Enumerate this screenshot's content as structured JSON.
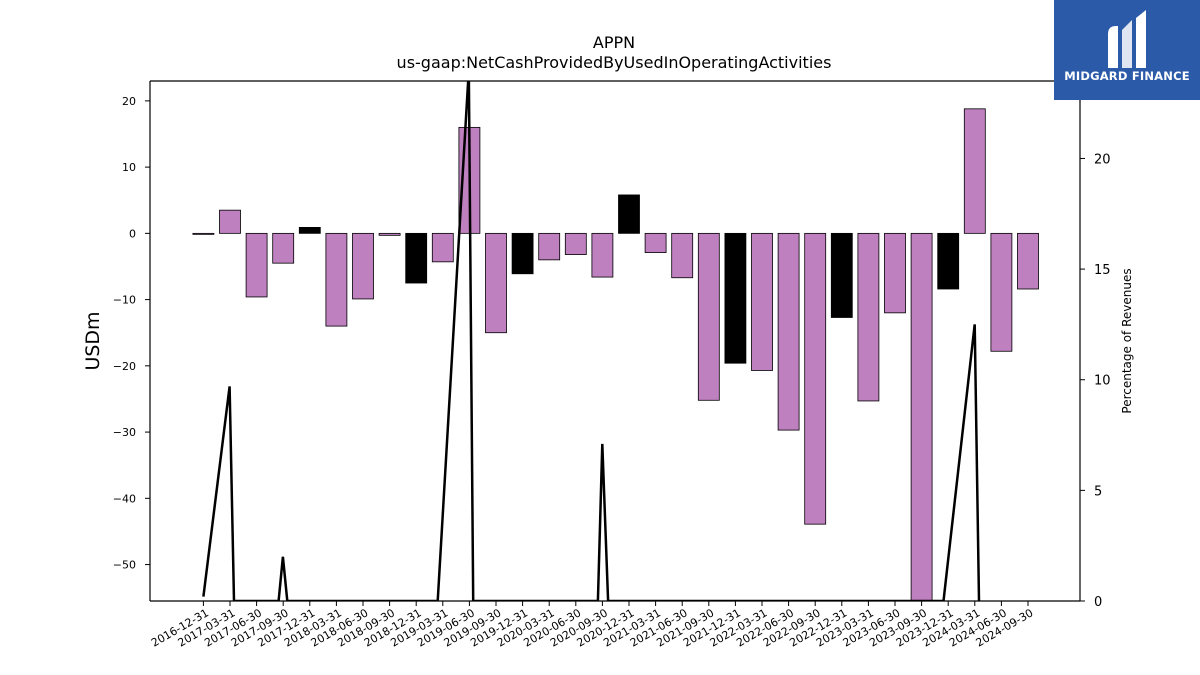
{
  "chart_data": {
    "type": "bar",
    "title": "APPN",
    "subtitle": "us-gaap:NetCashProvidedByUsedInOperatingActivities",
    "ylabel": "USDm",
    "y2label": "Percentage of Revenues",
    "ylim": [
      -55.5,
      23
    ],
    "y2lim": [
      0,
      23.5
    ],
    "yticks": [
      20,
      10,
      0,
      -10,
      -20,
      -30,
      -40,
      -50
    ],
    "y2ticks": [
      0,
      5,
      10,
      15,
      20
    ],
    "colors": {
      "positive_period": "#bf80bf",
      "negative_period": "#000000",
      "line": "#000000"
    },
    "categories": [
      "2016-12-31",
      "2017-03-31",
      "2017-06-30",
      "2017-09-30",
      "2017-12-31",
      "2018-03-31",
      "2018-06-30",
      "2018-09-30",
      "2018-12-31",
      "2019-03-31",
      "2019-06-30",
      "2019-09-30",
      "2019-12-31",
      "2020-03-31",
      "2020-06-30",
      "2020-09-30",
      "2020-12-31",
      "2021-03-31",
      "2021-06-30",
      "2021-09-30",
      "2021-12-31",
      "2022-03-31",
      "2022-06-30",
      "2022-09-30",
      "2022-12-31",
      "2023-03-31",
      "2023-06-30",
      "2023-09-30",
      "2023-12-31",
      "2024-03-31",
      "2024-06-30",
      "2024-09-30"
    ],
    "values": [
      0,
      3.5,
      -9.6,
      -4.5,
      0.9,
      -14,
      -9.9,
      -0.3,
      -7.5,
      -4.3,
      16,
      -15,
      -6.1,
      -4,
      -3.2,
      -6.6,
      5.8,
      -2.9,
      -6.7,
      -25.2,
      -19.6,
      -20.7,
      -29.7,
      -43.9,
      -12.7,
      -25.3,
      -12,
      -55.5,
      -8.4,
      18.8,
      -17.8,
      -8.4
    ],
    "bar_colors": [
      "purple",
      "purple",
      "purple",
      "purple",
      "black",
      "purple",
      "purple",
      "purple",
      "black",
      "purple",
      "purple",
      "purple",
      "black",
      "purple",
      "purple",
      "purple",
      "black",
      "purple",
      "purple",
      "purple",
      "black",
      "purple",
      "purple",
      "purple",
      "black",
      "purple",
      "purple",
      "purple",
      "black",
      "purple",
      "purple",
      "purple"
    ],
    "line_series": {
      "x": [
        "2016-12-31",
        "2017-03-31",
        "2017-04-15",
        "2017-09-15",
        "2017-09-30",
        "2017-10-15",
        "2019-03-15",
        "2019-06-30",
        "2019-07-15",
        "2020-09-15",
        "2020-09-30",
        "2020-10-20",
        "2023-12-15",
        "2024-03-31",
        "2024-04-15"
      ],
      "values": [
        0.2,
        9.7,
        0,
        0,
        2,
        0,
        0,
        24,
        0,
        0,
        7.1,
        0,
        0,
        12.5,
        0
      ]
    }
  },
  "logo": {
    "text": "MIDGARD FINANCE"
  }
}
